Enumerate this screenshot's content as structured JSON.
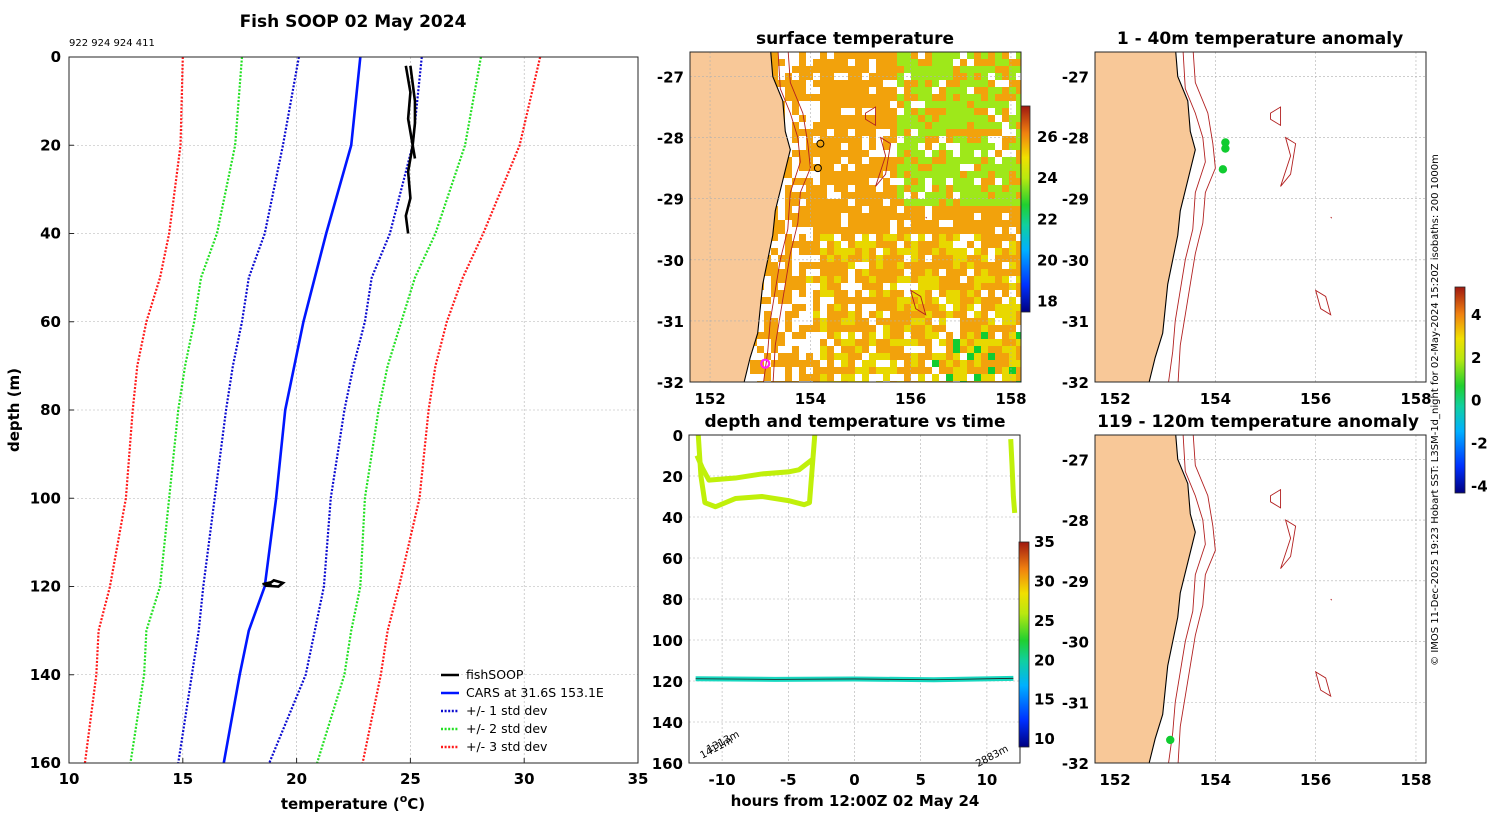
{
  "page": {
    "ids": "922 924 924 411",
    "credit": "© IMOS 11-Dec-2025 19:23 Hobart SST: L3SM-1d_night for 02-May-2024 15:20Z isobaths: 200  1000m"
  },
  "colors": {
    "land": "#f8c898",
    "coast": "#000000",
    "isobath": "#b22020",
    "fish": "#000000",
    "cars": "#0016ff",
    "std1": "#0a0ad0",
    "std2": "#22e022",
    "std3": "#ff1a1a",
    "sst_warm": "#f2a20c",
    "sst_mid": "#e8d800",
    "sst_cool": "#9ee81a",
    "track": "#c0f00a",
    "deep": "#18d8c0",
    "dot": "#10cc30",
    "magenta": "#ff20ff"
  },
  "chart_data": [
    {
      "id": "profile",
      "type": "line",
      "title": "Fish SOOP 02 May 2024",
      "xlabel": "temperature (°C)",
      "xlabel_base": "temperature (",
      "xlabel_sup": "o",
      "xlabel_end": "C)",
      "ylabel": "depth (m)",
      "xlim": [
        10,
        35
      ],
      "ylim": [
        0,
        160
      ],
      "xticks": [
        10,
        15,
        20,
        25,
        30,
        35
      ],
      "yticks": [
        0,
        20,
        40,
        60,
        80,
        100,
        120,
        140,
        160
      ],
      "legend_position": "bottom-right",
      "depth": [
        0,
        20,
        40,
        50,
        60,
        70,
        80,
        100,
        120,
        130,
        140,
        160
      ],
      "series": [
        {
          "name": "fishSOOP",
          "style": "solid",
          "color": "fish"
        },
        {
          "name": "CARS at 31.6S 153.1E",
          "style": "solid",
          "color": "cars",
          "values": [
            22.8,
            22.4,
            21.3,
            20.8,
            20.3,
            19.9,
            19.5,
            19.1,
            18.6,
            17.9,
            17.5,
            16.8
          ]
        },
        {
          "name": "+/- 1 std dev",
          "style": "dotted",
          "color": "std1",
          "values": [
            20.1,
            19.4,
            18.6,
            17.9,
            17.6,
            17.2,
            16.9,
            16.4,
            15.9,
            15.7,
            15.4,
            14.8
          ]
        },
        {
          "name": "",
          "style": "dotted",
          "color": "std1",
          "values": [
            25.5,
            25.1,
            24.1,
            23.3,
            23.0,
            22.5,
            22.1,
            21.5,
            21.2,
            20.8,
            20.4,
            18.8
          ]
        },
        {
          "name": "+/- 2 std dev",
          "style": "dotted",
          "color": "std2",
          "values": [
            17.6,
            17.3,
            16.5,
            15.8,
            15.5,
            15.1,
            14.8,
            14.4,
            14.0,
            13.4,
            13.3,
            12.7
          ]
        },
        {
          "name": "",
          "style": "dotted",
          "color": "std2",
          "values": [
            28.1,
            27.4,
            26.1,
            25.2,
            24.6,
            24.0,
            23.6,
            23.0,
            22.8,
            22.4,
            22.1,
            20.9
          ]
        },
        {
          "name": "+/- 3 std dev",
          "style": "dotted",
          "color": "std3",
          "values": [
            15.0,
            14.9,
            14.4,
            14.0,
            13.4,
            13.0,
            12.8,
            12.5,
            11.8,
            11.3,
            11.2,
            10.7
          ]
        },
        {
          "name": "",
          "style": "dotted",
          "color": "std3",
          "values": [
            30.7,
            29.8,
            28.2,
            27.3,
            26.6,
            26.1,
            25.8,
            25.4,
            24.5,
            24.0,
            23.7,
            22.9
          ]
        }
      ],
      "fish_segments": [
        {
          "temps": [
            24.8,
            25.0,
            24.9,
            25.1,
            24.9,
            25.0,
            24.8,
            24.9
          ],
          "depths": [
            2,
            8,
            14,
            20,
            26,
            32,
            36,
            40
          ]
        },
        {
          "temps": [
            25.0,
            25.1,
            25.2,
            25.2,
            25.1,
            25.2
          ],
          "depths": [
            2,
            6,
            10,
            15,
            20,
            23
          ]
        },
        {
          "temps": [
            18.5,
            18.9,
            19.0,
            19.4,
            19.2,
            18.6,
            18.9
          ],
          "depths": [
            119.5,
            119.0,
            118.6,
            119.2,
            120.0,
            119.8,
            119.3
          ]
        }
      ]
    },
    {
      "id": "sst",
      "type": "heatmap",
      "title": "surface temperature",
      "xlim": [
        151.6,
        158.2
      ],
      "ylim": [
        -32,
        -26.6
      ],
      "xticks": [
        152,
        154,
        156,
        158
      ],
      "yticks": [
        -27,
        -28,
        -29,
        -30,
        -31,
        -32
      ],
      "colorbar": {
        "min": 17.5,
        "max": 27.5,
        "ticks": [
          18,
          20,
          22,
          24,
          26
        ]
      },
      "markers": [
        {
          "lon": 154.2,
          "lat": -28.1,
          "kind": "station"
        },
        {
          "lon": 154.15,
          "lat": -28.5,
          "kind": "station"
        },
        {
          "lon": 153.1,
          "lat": -31.7,
          "kind": "position"
        }
      ]
    },
    {
      "id": "track",
      "type": "scatter",
      "title": "depth and temperature vs time",
      "xlabel": "hours from 12:00Z 02 May 24",
      "xlim": [
        -12.5,
        12.5
      ],
      "ylim": [
        0,
        160
      ],
      "xticks": [
        -10,
        -5,
        0,
        5,
        10
      ],
      "yticks": [
        0,
        20,
        40,
        60,
        80,
        100,
        120,
        140,
        160
      ],
      "colorbar": {
        "min": 9,
        "max": 35,
        "ticks": [
          10,
          15,
          20,
          25,
          30,
          35
        ]
      },
      "annotations": [
        {
          "text": "1411m",
          "hour": -11.5,
          "depth": 158
        },
        {
          "text": "1313m",
          "hour": -11.0,
          "depth": 155
        },
        {
          "text": "2883m",
          "hour": 10.5,
          "depth": 158
        }
      ],
      "shallow_hours": [
        -11.8,
        -11.6,
        -11.3,
        -10.5,
        -9.0,
        -7.0,
        -5.0,
        -3.8,
        -3.4,
        -3.0
      ],
      "shallow_depths": [
        0,
        20,
        33,
        35,
        31,
        30,
        32,
        34,
        33,
        0
      ],
      "upper_hours": [
        -11.9,
        -11.5,
        -11.0,
        -9.0,
        -7.0,
        -5.0,
        -4.2,
        -3.2
      ],
      "upper_depths": [
        10,
        16,
        22,
        21,
        19,
        18,
        17,
        12
      ],
      "late_hours": [
        11.8,
        11.9,
        12.0,
        12.1
      ],
      "late_depths": [
        2,
        15,
        30,
        38
      ],
      "deep_hours": [
        -12.0,
        -6.0,
        0.0,
        6.0,
        12.0
      ],
      "deep_depths": [
        118.9,
        119.2,
        119.0,
        119.4,
        118.7
      ]
    },
    {
      "id": "anom1",
      "type": "scatter",
      "title": "1 - 40m temperature anomaly",
      "xlim": [
        151.6,
        158.2
      ],
      "ylim": [
        -32,
        -26.6
      ],
      "xticks": [
        152,
        154,
        156,
        158
      ],
      "yticks": [
        -27,
        -28,
        -29,
        -30,
        -31,
        -32
      ],
      "points": [
        {
          "lon": 154.2,
          "lat": -28.08,
          "anomaly": 0.0
        },
        {
          "lon": 154.2,
          "lat": -28.18,
          "anomaly": 0.0
        },
        {
          "lon": 154.15,
          "lat": -28.52,
          "anomaly": 0.0
        }
      ]
    },
    {
      "id": "anom2",
      "type": "scatter",
      "title": "119 - 120m temperature anomaly",
      "xlim": [
        151.6,
        158.2
      ],
      "ylim": [
        -32,
        -26.6
      ],
      "xticks": [
        152,
        154,
        156,
        158
      ],
      "yticks": [
        -27,
        -28,
        -29,
        -30,
        -31,
        -32
      ],
      "points": [
        {
          "lon": 153.1,
          "lat": -31.62,
          "anomaly": 0.0
        }
      ]
    },
    {
      "id": "anomcb",
      "type": "colorbar",
      "min": -4.3,
      "max": 5.3,
      "ticks": [
        -4,
        -2,
        0,
        2,
        4
      ],
      "tick_labels": [
        "-4",
        "-2",
        "0",
        "2",
        "4"
      ]
    }
  ]
}
